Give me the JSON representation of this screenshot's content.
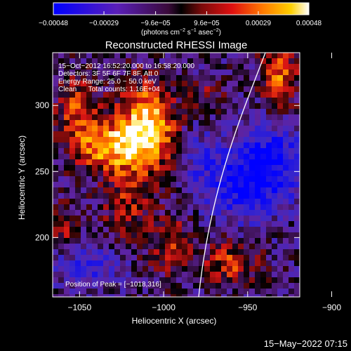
{
  "colorbar": {
    "ticks": [
      {
        "label": "−0.00048",
        "value": -0.00048
      },
      {
        "label": "−0.00029",
        "value": -0.00029
      },
      {
        "label": "−9.6e−05",
        "value": -9.6e-05
      },
      {
        "label": "9.6e−05",
        "value": 9.6e-05
      },
      {
        "label": "0.00029",
        "value": 0.00029
      },
      {
        "label": "0.00048",
        "value": 0.00048
      }
    ],
    "range": [
      -0.00048,
      0.00048
    ],
    "unit_text": "(photons cm",
    "unit_exp1": "−2",
    "unit_mid": " s",
    "unit_exp2": "−1",
    "unit_mid2": " asec",
    "unit_exp3": "−2",
    "unit_end": ")"
  },
  "chart_data": {
    "type": "heatmap",
    "title": "Reconstructed RHESSI Image",
    "xlabel": "Heliocentric X (arcsec)",
    "ylabel": "Heliocentric Y (arcsec)",
    "xlim": [
      -1066,
      -919
    ],
    "ylim": [
      155,
      340
    ],
    "xticks": [
      {
        "label": "−1050",
        "value": -1050
      },
      {
        "label": "−1000",
        "value": -1000
      },
      {
        "label": "−950",
        "value": -950
      },
      {
        "label": "−900",
        "value": -900
      }
    ],
    "yticks": [
      {
        "label": "200",
        "value": 200
      },
      {
        "label": "250",
        "value": 250
      },
      {
        "label": "300",
        "value": 300
      }
    ],
    "colormap": "blue-purple-red-yellow-white",
    "annotations": [
      "15−Oct−2012 16:52:20.000 to 16:58:20.000",
      "Detectors: 3F 5F 6F 7F 8F, Att 0",
      "Energy Range: 25.0 − 50.0 keV",
      "Clean      Total counts: 1.16E+04"
    ],
    "peak_label": "Position of Peak = [−1018,316]",
    "peak": [
      -1018,
      316
    ]
  },
  "footer": {
    "timestamp": "15−May−2022 07:15"
  }
}
